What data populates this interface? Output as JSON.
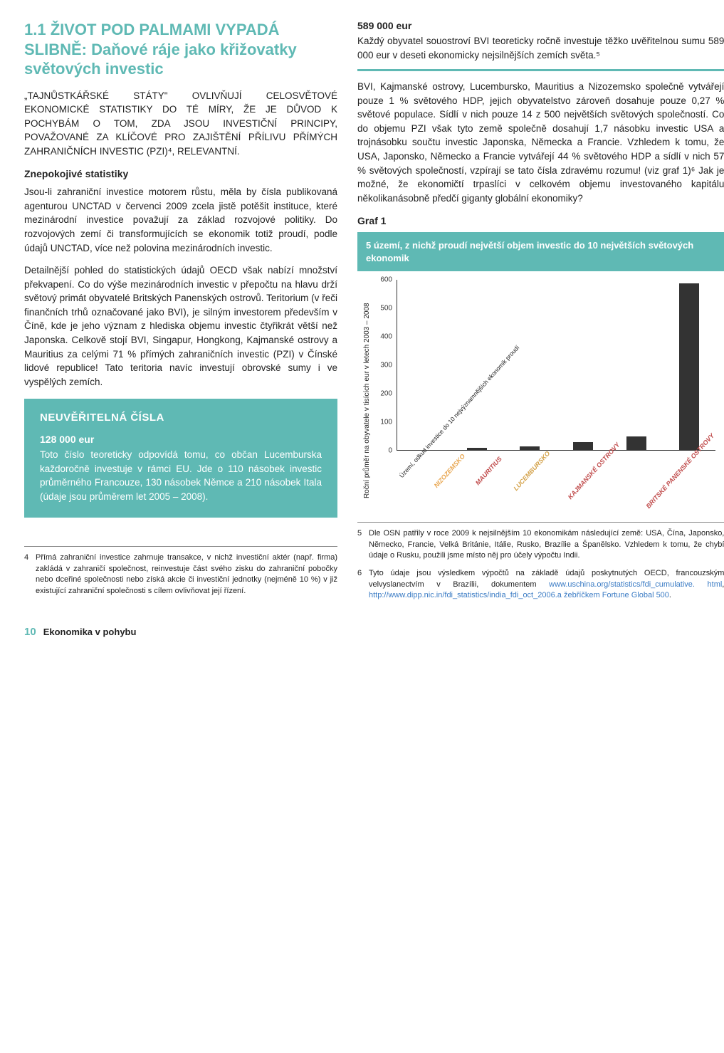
{
  "section": {
    "title": "1.1 ŽIVOT POD PALMAMI VYPADÁ SLIBNĚ: Daňové ráje jako křižovatky světových investic",
    "lead": "„TAJNŮSTKÁŘSKÉ STÁTY\" OVLIVŇUJÍ CELOSVĚTOVÉ EKONOMICKÉ STATISTIKY DO TÉ MÍRY, ŽE JE DŮVOD K POCHYBÁM O TOM, ZDA JSOU INVESTIČNÍ PRINCIPY, POVAŽOVANÉ ZA KLÍČOVÉ PRO ZAJIŠTĚNÍ PŘÍLIVU PŘÍMÝCH ZAHRANIČNÍCH INVESTIC (PZI)⁴, RELEVANTNÍ.",
    "subhead": "Znepokojivé statistiky",
    "para1": "Jsou-li zahraniční investice motorem růstu, měla by čísla publikovaná agenturou UNCTAD v červenci 2009 zcela jistě potěšit instituce, které mezinárodní investice považují za základ rozvojové politiky. Do rozvojových zemí či transformujících se ekonomik totiž proudí, podle údajů UNCTAD, více než polovina mezinárodních investic.",
    "para2": "Detailnější pohled do statistických údajů OECD však nabízí množství překvapení. Co do výše mezinárodních investic v přepočtu na hlavu drží světový primát obyvatelé Britských Panenských ostrovů. Teritorium (v řeči finančních trhů označované jako BVI), je silným investorem především v Číně, kde je jeho význam z hlediska objemu investic čtyřikrát větší než Japonska. Celkově stojí BVI, Singapur, Hongkong, Kajmanské ostrovy a Mauritius za celými 71 % přímých zahraničních investic (PZI) v Čínské lidové republice! Tato teritoria navíc investují obrovské sumy i ve vyspělých zemích."
  },
  "callout_left": {
    "title": "NEUVĚŘITELNÁ ČÍSLA",
    "amount": "128 000 eur",
    "body": "Toto číslo teoreticky odpovídá tomu, co občan Lucemburska každoročně investuje v rámci EU. Jde o 110 násobek investic průměrného Francouze, 130 násobek Němce a 210 násobek Itala (údaje jsou průměrem let 2005 – 2008)."
  },
  "callout_right": {
    "amount": "589 000 eur",
    "body": "Každý obyvatel souostroví BVI teoreticky ročně investuje těžko uvěřitelnou sumu 589 000 eur v deseti ekonomicky nejsilnějších zemích světa.⁵"
  },
  "right_para": "BVI, Kajmanské ostrovy, Lucembursko, Mauritius a Nizozemsko společně vytvářejí pouze 1 % světového HDP, jejich obyvatelstvo zároveň dosahuje pouze 0,27 % světové populace. Sídlí v nich pouze 14 z 500 největších světových společností. Co do objemu PZI však tyto země společně dosahují 1,7 násobku investic USA a trojnásobku součtu investic Japonska, Německa a Francie. Vzhledem k tomu, že USA, Japonsko, Německo a Francie vytvářejí 44 % světového HDP a sídlí v nich 57 % světových společností, vzpírají se tato čísla zdravému rozumu! (viz graf 1)⁶ Jak je možné, že ekonomičtí trpaslíci v celkovém objemu investovaného kapitálu několikanásobně předčí giganty globální ekonomiky?",
  "graf_label": "Graf 1",
  "chart": {
    "title": "5 území, z nichž proudí největší objem investic do 10 největších světových ekonomik",
    "y_label": "Roční průměr na obyvatele v tisících eur v letech 2003 – 2008",
    "ylim": [
      0,
      600
    ],
    "ytick_step": 100,
    "y_ticks": [
      "0",
      "100",
      "200",
      "300",
      "400",
      "500",
      "600"
    ],
    "categories": [
      "Území,\nodkud investice\ndo 10 nejvýznamnějších\nekonomik proudí",
      "NIZOZEMSKO",
      "MAURITIUS",
      "LUCEMBURSKO",
      "KAJMANSKÉ OSTROVY",
      "BRITSKÉ PANENSKÉ OSTROVY"
    ],
    "values": [
      0,
      8,
      14,
      28,
      48,
      589
    ],
    "bar_color": "#333333",
    "background_color": "#ffffff",
    "axis_color": "#333333",
    "label_colors": [
      "#333333",
      "#e8a54e",
      "#c04b4b",
      "#d4a24a",
      "#c04b4b",
      "#c04b4b"
    ]
  },
  "footnotes_left": [
    {
      "num": "4",
      "body": "Přímá zahraniční investice zahrnuje transakce, v nichž investiční aktér (např. firma) zakládá v zahraničí společnost, reinvestuje část svého zisku do zahraniční pobočky nebo dceřiné společnosti nebo získá akcie či investiční jednotky (nejméně 10 %) v již existující zahraniční společnosti s cílem ovlivňovat její řízení."
    }
  ],
  "footnotes_right": [
    {
      "num": "5",
      "body": "Dle OSN patřily v roce 2009 k nejsilnějším 10 ekonomikám následující země: USA, Čína, Japonsko, Německo, Francie, Velká Británie, Itálie, Rusko, Brazílie a Španělsko. Vzhledem k tomu, že chybí údaje o Rusku, použili jsme místo něj pro účely výpočtu Indii."
    },
    {
      "num": "6",
      "body_pre": "Tyto údaje jsou výsledkem výpočtů na základě údajů poskytnutých OECD, francouzským velvyslanectvím v Brazílii, dokumentem ",
      "link1": "www.uschina.org/statistics/fdi_cumulative. html",
      "body_mid": ", ",
      "link2": "http://www.dipp.nic.in/fdi_statistics/india_fdi_oct_2006.a",
      "body_post": " ",
      "link3": "žebříčkem Fortune Global 500",
      "body_end": "."
    }
  ],
  "footer": {
    "page_num": "10",
    "caption": "Ekonomika v pohybu"
  }
}
